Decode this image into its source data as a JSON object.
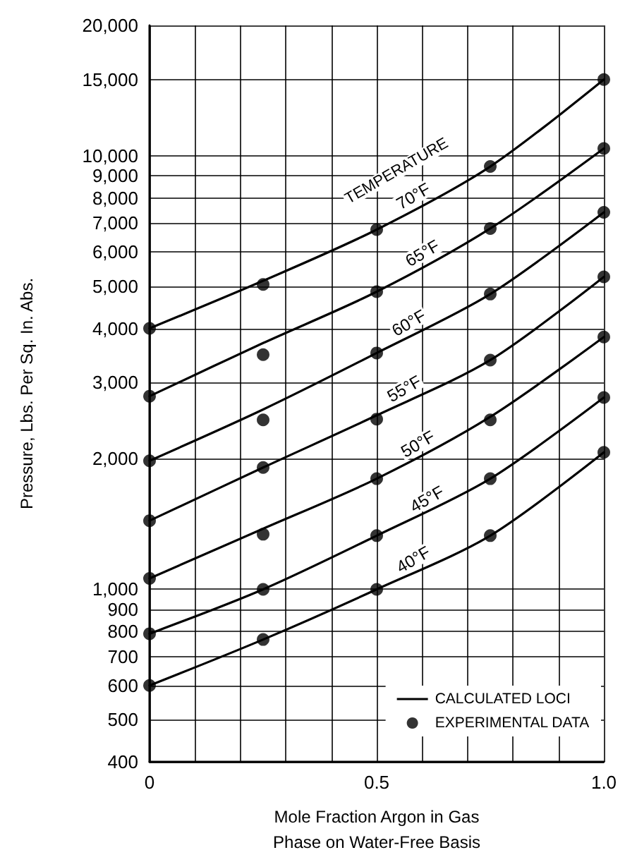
{
  "chart_data": {
    "type": "line",
    "xlabel": "Mole Fraction Argon in Gas\nPhase on Water-Free Basis",
    "ylabel": "Pressure, Lbs. Per Sq. In. Abs.",
    "series": [
      {
        "name": "CALCULATED LOCI",
        "color": "#000000",
        "marker": "none",
        "line_style": "solid",
        "x": [
          0,
          0.25,
          0.5,
          0.75,
          1,
          null,
          0,
          0.25,
          0.5,
          0.75,
          1,
          null,
          0,
          0.25,
          0.5,
          0.75,
          1,
          null,
          0,
          0.25,
          0.5,
          0.75,
          1,
          null,
          0,
          0.25,
          0.5,
          0.75,
          1,
          null,
          0,
          0.25,
          0.5,
          0.75,
          1,
          null,
          0,
          0.25,
          0.5,
          0.75,
          1
        ],
        "values": [
          4000,
          5150,
          6760,
          9450,
          15000,
          null,
          2790,
          3700,
          4860,
          6800,
          10400,
          null,
          1980,
          2600,
          3510,
          4800,
          7410,
          null,
          1440,
          1910,
          2520,
          3380,
          5260,
          null,
          1060,
          1380,
          1800,
          2500,
          3820,
          null,
          790,
          1000,
          1330,
          1800,
          2770,
          null,
          600,
          766,
          1000,
          1330,
          2070
        ]
      },
      {
        "name": "EXPERIMENTAL DATA",
        "type": "scatter",
        "color": "#000000",
        "marker": "circle",
        "x": [
          0,
          0.25,
          0.5,
          0.75,
          1,
          0,
          0.25,
          0.5,
          0.75,
          1,
          0,
          0.25,
          0.5,
          0.75,
          1,
          0,
          0.25,
          0.5,
          0.75,
          1,
          0,
          0.25,
          0.5,
          0.75,
          1,
          0,
          0.25,
          0.5,
          0.75,
          1,
          0,
          0.25,
          0.5,
          0.75,
          1
        ],
        "values": [
          4000,
          5050,
          6760,
          9450,
          15000,
          2790,
          3480,
          4860,
          6800,
          10400,
          1980,
          2460,
          3510,
          4800,
          7410,
          1440,
          1910,
          2470,
          3380,
          5260,
          1060,
          1340,
          1800,
          2460,
          3820,
          790,
          1000,
          1330,
          1800,
          2770,
          600,
          766,
          1000,
          1330,
          2070
        ]
      }
    ],
    "annotations": [
      "TEMPERATURE",
      {
        "text": "70°F",
        "x": 0.59,
        "y": 7650
      },
      {
        "text": "65°F",
        "x": 0.61,
        "y": 5650
      },
      {
        "text": "60°F",
        "x": 0.58,
        "y": 3900
      },
      {
        "text": "55°F",
        "x": 0.57,
        "y": 2750
      },
      {
        "text": "50°F",
        "x": 0.6,
        "y": 2050
      },
      {
        "text": "45°F",
        "x": 0.62,
        "y": 1530
      },
      {
        "text": "40°F",
        "x": 0.59,
        "y": 1110
      }
    ],
    "xlim": [
      0,
      1
    ],
    "xticks": [
      0,
      {
        "value": 0.1,
        "label": null
      },
      {
        "value": 0.2,
        "label": null
      },
      {
        "value": 0.3,
        "label": null
      },
      {
        "value": 0.4,
        "label": null
      },
      0.5,
      {
        "value": 0.6,
        "label": null
      },
      {
        "value": 0.7,
        "label": null
      },
      {
        "value": 0.8,
        "label": null
      },
      {
        "value": 0.9,
        "label": null
      },
      {
        "value": 1,
        "label": "1.0"
      }
    ],
    "ylim": [
      400,
      20000
    ],
    "log": "y",
    "yticks": [
      400,
      500,
      600,
      700,
      800,
      900,
      {
        "value": 1000,
        "label": "1,000"
      },
      {
        "value": 2000,
        "label": "2,000"
      },
      {
        "value": 3000,
        "label": "3,000"
      },
      {
        "value": 4000,
        "label": "4,000"
      },
      {
        "value": 5000,
        "label": "5,000"
      },
      {
        "value": 6000,
        "label": "6,000"
      },
      {
        "value": 7000,
        "label": "7,000"
      },
      {
        "value": 8000,
        "label": "8,000"
      },
      {
        "value": 9000,
        "label": "9,000"
      },
      {
        "value": 10000,
        "label": "10,000"
      },
      {
        "value": 15000,
        "label": "15,000"
      },
      {
        "value": 20000,
        "label": "20,000"
      }
    ],
    "grid": true,
    "legend": "bottom right"
  }
}
